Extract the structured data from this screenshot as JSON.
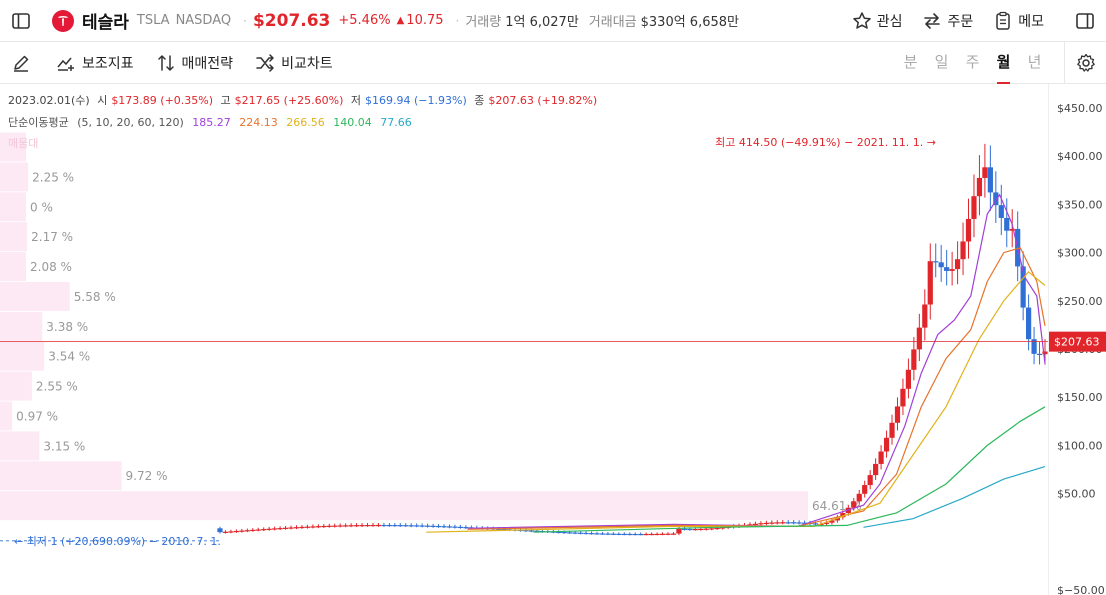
{
  "header": {
    "stock_name": "테슬라",
    "ticker": "TSLA",
    "exchange": "NASDAQ",
    "price": "$207.63",
    "change_pct": "+5.46%",
    "change_abs": "10.75",
    "volume_label": "거래량",
    "volume_value": "1억 6,027만",
    "amount_label": "거래대금",
    "amount_value": "$330억 6,658만",
    "actions": {
      "watch": "관심",
      "order": "주문",
      "memo": "메모"
    }
  },
  "toolbar": {
    "indicators": "보조지표",
    "strategy": "매매전략",
    "compare": "비교차트",
    "periods": [
      "분",
      "일",
      "주",
      "월",
      "년"
    ],
    "active_period": "월"
  },
  "info": {
    "date": "2023.02.01(수)",
    "open_label": "시",
    "open_value": "$173.89 (+0.35%)",
    "high_label": "고",
    "high_value": "$217.65 (+25.60%)",
    "low_label": "저",
    "low_value": "$169.94 (−1.93%)",
    "close_label": "종",
    "close_value": "$207.63 (+19.82%)"
  },
  "ma": {
    "label": "단순이동평균",
    "periods": "(5, 10, 20, 60, 120)",
    "values": [
      {
        "value": "185.27",
        "color": "#a040d8"
      },
      {
        "value": "224.13",
        "color": "#e8732b"
      },
      {
        "value": "266.56",
        "color": "#e0b21b"
      },
      {
        "value": "140.04",
        "color": "#2cb85c"
      },
      {
        "value": "77.66",
        "color": "#2aa8c8"
      }
    ]
  },
  "volume_profile_label": "매물대",
  "colors": {
    "up": "#e0252b",
    "down": "#2f6fd6",
    "profile": "#fde9f3"
  },
  "chart_data": {
    "type": "candlestick",
    "y_axis_ticks": [
      "$450.00",
      "$400.00",
      "$350.00",
      "$300.00",
      "$250.00",
      "$200.00",
      "$150.00",
      "$100.00",
      "$50.00",
      "$−50.00"
    ],
    "ylim": [
      -50,
      450
    ],
    "current_price_label": "$207.63",
    "current_price": 207.63,
    "high_annotation": "최고 414.50 (−49.91%) − 2021. 11. 1. →",
    "low_annotation": "← 최저 1 (+20,690.09%) − 2010. 7. 1.",
    "volume_profile": [
      {
        "price": 409,
        "pct": 0,
        "label": ""
      },
      {
        "price": 378,
        "pct": 2.25,
        "label": "2.25 %"
      },
      {
        "price": 347,
        "pct": 0,
        "label": "0 %"
      },
      {
        "price": 316,
        "pct": 2.17,
        "label": "2.17 %"
      },
      {
        "price": 285,
        "pct": 2.08,
        "label": "2.08 %"
      },
      {
        "price": 254,
        "pct": 5.58,
        "label": "5.58 %"
      },
      {
        "price": 223,
        "pct": 3.38,
        "label": "3.38 %"
      },
      {
        "price": 192,
        "pct": 3.54,
        "label": "3.54 %"
      },
      {
        "price": 161,
        "pct": 2.55,
        "label": "2.55 %"
      },
      {
        "price": 130,
        "pct": 0.97,
        "label": "0.97 %"
      },
      {
        "price": 99,
        "pct": 3.15,
        "label": "3.15 %"
      },
      {
        "price": 68,
        "pct": 9.72,
        "label": "9.72 %"
      },
      {
        "price": 37,
        "pct": 64.61,
        "label": "64.61 %"
      }
    ],
    "series": [
      {
        "name": "5",
        "points": [
          [
            0.3,
            14
          ],
          [
            0.55,
            18
          ],
          [
            0.7,
            16
          ],
          [
            0.75,
            30
          ],
          [
            0.78,
            38
          ],
          [
            0.8,
            60
          ],
          [
            0.83,
            120
          ],
          [
            0.85,
            175
          ],
          [
            0.87,
            215
          ],
          [
            0.89,
            230
          ],
          [
            0.91,
            255
          ],
          [
            0.93,
            340
          ],
          [
            0.945,
            360
          ],
          [
            0.96,
            330
          ],
          [
            0.975,
            275
          ],
          [
            0.99,
            255
          ],
          [
            1.0,
            185
          ]
        ],
        "color": "#a040d8"
      },
      {
        "name": "10",
        "points": [
          [
            0.3,
            13
          ],
          [
            0.55,
            17
          ],
          [
            0.7,
            16
          ],
          [
            0.78,
            32
          ],
          [
            0.82,
            70
          ],
          [
            0.85,
            140
          ],
          [
            0.88,
            190
          ],
          [
            0.91,
            220
          ],
          [
            0.93,
            270
          ],
          [
            0.95,
            300
          ],
          [
            0.97,
            305
          ],
          [
            0.99,
            270
          ],
          [
            1.0,
            224
          ]
        ],
        "color": "#e8732b"
      },
      {
        "name": "20",
        "points": [
          [
            0.25,
            10
          ],
          [
            0.55,
            16
          ],
          [
            0.72,
            16
          ],
          [
            0.8,
            40
          ],
          [
            0.84,
            90
          ],
          [
            0.88,
            140
          ],
          [
            0.92,
            210
          ],
          [
            0.95,
            250
          ],
          [
            0.98,
            280
          ],
          [
            1.0,
            266
          ]
        ],
        "color": "#e0b21b"
      },
      {
        "name": "60",
        "points": [
          [
            0.38,
            10
          ],
          [
            0.6,
            15
          ],
          [
            0.76,
            17
          ],
          [
            0.82,
            30
          ],
          [
            0.88,
            60
          ],
          [
            0.93,
            100
          ],
          [
            0.97,
            125
          ],
          [
            1.0,
            140
          ]
        ],
        "color": "#2cb85c"
      },
      {
        "name": "120",
        "points": [
          [
            0.78,
            15
          ],
          [
            0.84,
            24
          ],
          [
            0.9,
            45
          ],
          [
            0.95,
            65
          ],
          [
            1.0,
            78
          ]
        ],
        "color": "#2aa8c8"
      }
    ]
  }
}
